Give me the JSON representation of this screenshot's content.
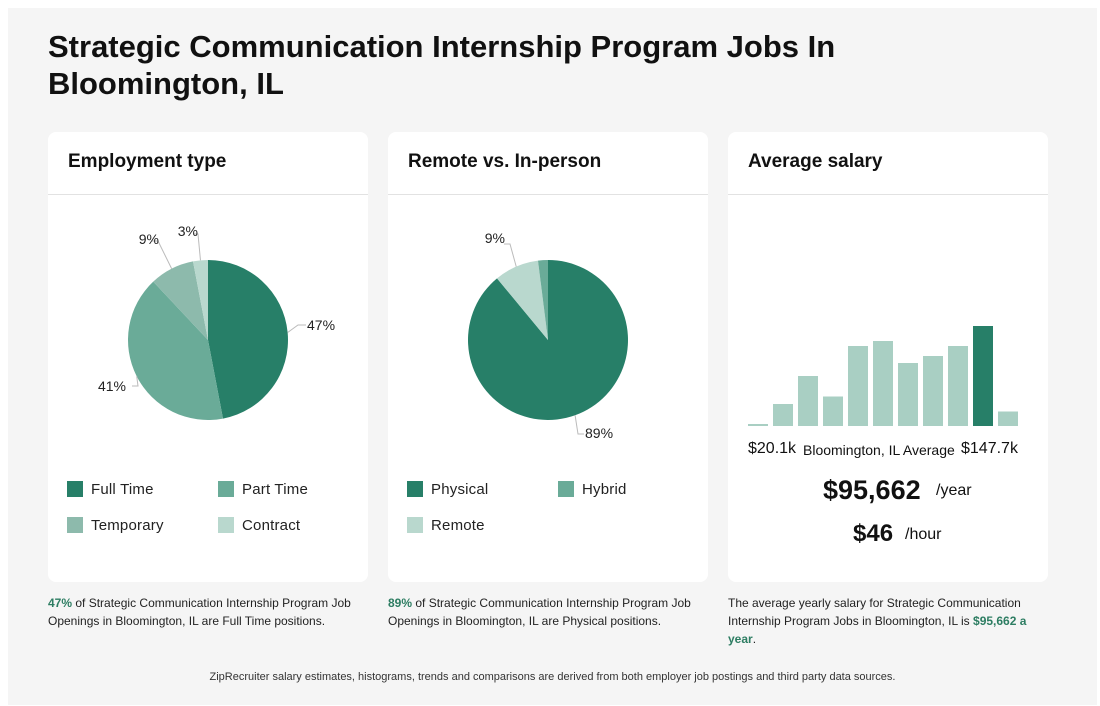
{
  "title": "Strategic Communication Internship Program Jobs In Bloomington, IL",
  "footer": "ZipRecruiter salary estimates, histograms, trends and comparisons are derived from both employer job postings and third party data sources.",
  "colors": {
    "dark_green": "#277f68",
    "medium_green": "#6aab98",
    "light_green": "#8dbaac",
    "pale_green": "#b9d8ce",
    "bar_light": "#a9cfc3",
    "highlight": "#2d7d62"
  },
  "employment": {
    "header": "Employment type",
    "legend": [
      "Full Time",
      "Part Time",
      "Temporary",
      "Contract"
    ],
    "caption_pct": "47%",
    "caption_rest": " of Strategic Communication Internship Program Job Openings in Bloomington, IL are Full Time positions."
  },
  "remote": {
    "header": "Remote vs. In-person",
    "legend": [
      "Physical",
      "Hybrid",
      "Remote"
    ],
    "caption_pct": "89%",
    "caption_rest": " of Strategic Communication Internship Program Job Openings in Bloomington, IL are Physical positions."
  },
  "salary": {
    "header": "Average salary",
    "min_label": "$20.1k",
    "mid_label": "Bloomington, IL Average",
    "max_label": "$147.7k",
    "yearly": "$95,662",
    "yearly_unit": "/year",
    "hourly": "$46",
    "hourly_unit": "/hour",
    "caption_pre": "The average yearly salary for Strategic Communication Internship Program Jobs in Bloomington, IL is ",
    "caption_value": "$95,662 a year",
    "caption_post": "."
  },
  "chart_data": [
    {
      "type": "pie",
      "title": "Employment type",
      "categories": [
        "Full Time",
        "Part Time",
        "Temporary",
        "Contract"
      ],
      "values": [
        47,
        41,
        9,
        3
      ],
      "labels": [
        "47%",
        "41%",
        "9%",
        "3%"
      ]
    },
    {
      "type": "pie",
      "title": "Remote vs. In-person",
      "categories": [
        "Physical",
        "Remote",
        "Hybrid"
      ],
      "values": [
        89,
        9,
        2
      ],
      "labels": [
        "89%",
        "9%",
        ""
      ]
    },
    {
      "type": "bar",
      "title": "Average salary",
      "xlabel_min": "$20.1k",
      "xlabel_max": "$147.7k",
      "values": [
        0.4,
        4.4,
        10,
        5.9,
        16,
        17,
        12.6,
        14,
        16,
        20,
        2.9
      ],
      "highlight_index": 9
    }
  ]
}
